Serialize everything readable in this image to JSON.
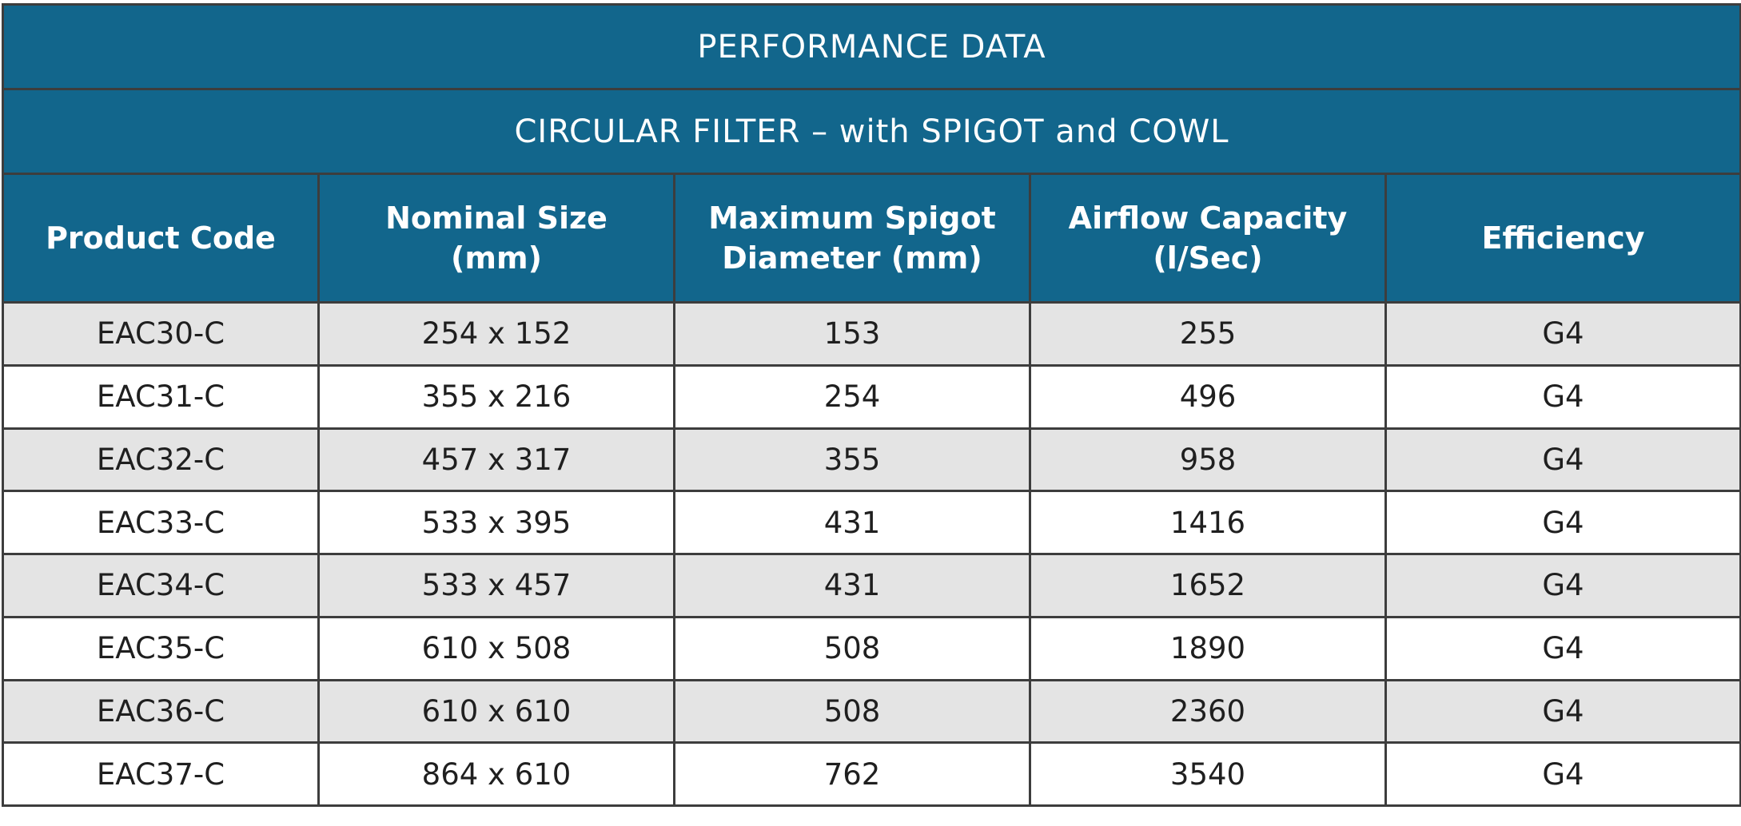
{
  "title": "PERFORMANCE DATA",
  "subtitle": "CIRCULAR FILTER – with SPIGOT and COWL",
  "columns": [
    {
      "line1": "Product Code",
      "line2": ""
    },
    {
      "line1": "Nominal Size",
      "line2": "(mm)"
    },
    {
      "line1": "Maximum Spigot",
      "line2": "Diameter (mm)"
    },
    {
      "line1": "Airflow Capacity",
      "line2": "(l/Sec)"
    },
    {
      "line1": "Efficiency",
      "line2": ""
    }
  ],
  "rows": [
    [
      "EAC30-C",
      "254 x 152",
      "153",
      "255",
      "G4"
    ],
    [
      "EAC31-C",
      "355 x 216",
      "254",
      "496",
      "G4"
    ],
    [
      "EAC32-C",
      "457 x 317",
      "355",
      "958",
      "G4"
    ],
    [
      "EAC33-C",
      "533 x 395",
      "431",
      "1416",
      "G4"
    ],
    [
      "EAC34-C",
      "533 x 457",
      "431",
      "1652",
      "G4"
    ],
    [
      "EAC35-C",
      "610 x 508",
      "508",
      "1890",
      "G4"
    ],
    [
      "EAC36-C",
      "610 x 610",
      "508",
      "2360",
      "G4"
    ],
    [
      "EAC37-C",
      "864 x 610",
      "762",
      "3540",
      "G4"
    ]
  ],
  "colors": {
    "header_bg": "#12668c",
    "stripe": "#e4e4e4",
    "border": "#3d3d3d"
  }
}
